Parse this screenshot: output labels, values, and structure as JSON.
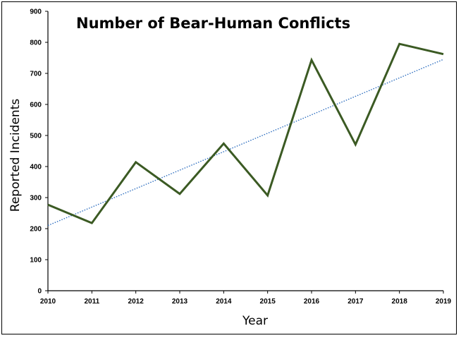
{
  "chart_data": {
    "type": "line",
    "title": "Number of Bear-Human Conflicts",
    "xlabel": "Year",
    "ylabel": "Reported Incidents",
    "categories": [
      "2010",
      "2011",
      "2012",
      "2013",
      "2014",
      "2015",
      "2016",
      "2017",
      "2018",
      "2019"
    ],
    "series": [
      {
        "values": [
          277,
          218,
          414,
          312,
          474,
          307,
          743,
          471,
          795,
          762
        ],
        "color": "#3b5a23"
      }
    ],
    "trendline": {
      "type": "linear",
      "start": 210,
      "end": 745,
      "color": "#2f6fc0",
      "style": "dotted"
    },
    "yticks": [
      "0",
      "100",
      "200",
      "300",
      "400",
      "500",
      "600",
      "700",
      "800",
      "900"
    ],
    "ylim": [
      0,
      900
    ],
    "grid": false,
    "legend": "none"
  }
}
